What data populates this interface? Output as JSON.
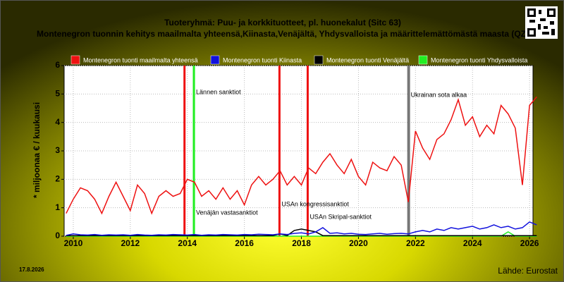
{
  "chart_data": {
    "type": "line",
    "title": "Tuoteryhmä: Puu- ja korkkituotteet, pl. huonekalut (Sitc 63)",
    "subtitle": "Montenegron tuonnin kehitys maailmalta yhteensä,Kiinasta,Venäjältä, Yhdysvalloista ja määrittelemättömästä maasta (QZ)",
    "y_label": "* miljoonaa € / kuukausi",
    "date": "17.8.2026",
    "source": "Lähde: Eurostat",
    "x": [
      2009.75,
      2010,
      2010.25,
      2010.5,
      2010.75,
      2011,
      2011.25,
      2011.5,
      2011.75,
      2012,
      2012.25,
      2012.5,
      2012.75,
      2013,
      2013.25,
      2013.5,
      2013.75,
      2014,
      2014.25,
      2014.5,
      2014.75,
      2015,
      2015.25,
      2015.5,
      2015.75,
      2016,
      2016.25,
      2016.5,
      2016.75,
      2017,
      2017.25,
      2017.5,
      2017.75,
      2018,
      2018.25,
      2018.5,
      2018.75,
      2019,
      2019.25,
      2019.5,
      2019.75,
      2020,
      2020.25,
      2020.5,
      2020.75,
      2021,
      2021.25,
      2021.5,
      2021.75,
      2022,
      2022.25,
      2022.5,
      2022.75,
      2023,
      2023.25,
      2023.5,
      2023.75,
      2024,
      2024.25,
      2024.5,
      2024.75,
      2025,
      2025.25,
      2025.5,
      2025.75,
      2026,
      2026.25
    ],
    "series": [
      {
        "name": "Montenegron tuonti maailmalta yhteensä",
        "color": "#ee1111",
        "values": [
          0.8,
          1.3,
          1.7,
          1.6,
          1.3,
          0.8,
          1.4,
          1.9,
          1.4,
          0.9,
          1.8,
          1.5,
          0.8,
          1.4,
          1.6,
          1.4,
          1.5,
          2.0,
          1.9,
          1.4,
          1.6,
          1.3,
          1.7,
          1.3,
          1.6,
          1.1,
          1.8,
          2.1,
          1.8,
          2.0,
          2.3,
          1.8,
          2.1,
          1.8,
          2.4,
          2.2,
          2.6,
          2.9,
          2.5,
          2.2,
          2.7,
          2.1,
          1.8,
          2.6,
          2.4,
          2.3,
          2.8,
          2.5,
          1.2,
          3.7,
          3.1,
          2.7,
          3.4,
          3.6,
          4.1,
          4.8,
          3.9,
          4.2,
          3.5,
          3.9,
          3.6,
          4.6,
          4.3,
          3.8,
          1.8,
          4.6,
          4.9
        ]
      },
      {
        "name": "Montenegron tuonti Kiinasta",
        "color": "#1111dd",
        "values": [
          0.03,
          0.08,
          0.05,
          0.04,
          0.06,
          0.03,
          0.05,
          0.04,
          0.05,
          0.03,
          0.06,
          0.04,
          0.03,
          0.05,
          0.04,
          0.06,
          0.05,
          0.04,
          0.06,
          0.03,
          0.05,
          0.04,
          0.06,
          0.05,
          0.04,
          0.06,
          0.05,
          0.07,
          0.06,
          0.05,
          0.08,
          0.06,
          0.1,
          0.12,
          0.08,
          0.15,
          0.3,
          0.1,
          0.12,
          0.08,
          0.1,
          0.07,
          0.06,
          0.08,
          0.1,
          0.07,
          0.09,
          0.1,
          0.08,
          0.15,
          0.2,
          0.15,
          0.25,
          0.2,
          0.3,
          0.25,
          0.3,
          0.35,
          0.25,
          0.3,
          0.4,
          0.3,
          0.35,
          0.25,
          0.3,
          0.5,
          0.4
        ]
      },
      {
        "name": "Montenegron tuonti Venäjältä",
        "color": "#000000",
        "values": [
          0.02,
          0.02,
          0.02,
          0.02,
          0.02,
          0.02,
          0.02,
          0.02,
          0.02,
          0.02,
          0.02,
          0.02,
          0.02,
          0.02,
          0.02,
          0.02,
          0.02,
          0.02,
          0.02,
          0.02,
          0.02,
          0.02,
          0.02,
          0.02,
          0.02,
          0.02,
          0.02,
          0.02,
          0.02,
          0.02,
          0.08,
          0.02,
          0.2,
          0.25,
          0.2,
          0.15,
          0.02,
          0.02,
          0.02,
          0.02,
          0.02,
          0.02,
          0.02,
          0.02,
          0.02,
          0.02,
          0.02,
          0.02,
          0.02,
          0.02,
          0.02,
          0.02,
          0.02,
          0.02,
          0.02,
          0.02,
          0.02,
          0.02,
          0.02,
          0.02,
          0.02,
          0.02,
          0.02,
          0.02,
          0.02,
          0.02,
          0.02
        ]
      },
      {
        "name": "Montenegron tuonti Yhdysvalloista",
        "color": "#22ee22",
        "values": [
          0,
          0,
          0,
          0,
          0,
          0,
          0,
          0,
          0,
          0,
          0,
          0,
          0,
          0,
          0,
          0,
          0,
          0,
          0,
          0,
          0,
          0,
          0,
          0,
          0,
          0,
          0,
          0,
          0,
          0,
          0,
          0,
          0,
          0,
          0,
          0,
          0,
          0,
          0,
          0,
          0,
          0,
          0,
          0,
          0,
          0,
          0,
          0,
          0,
          0,
          0,
          0,
          0,
          0,
          0,
          0,
          0,
          0,
          0,
          0,
          0,
          0,
          0.15,
          0,
          0,
          0,
          0
        ]
      }
    ],
    "annotations": [
      {
        "x": 2013.9,
        "label": "",
        "color": "#ee1111"
      },
      {
        "x": 2014.23,
        "label": "Lännen sanktiot",
        "color": "#22ee22"
      },
      {
        "x": 2014.23,
        "label": "Venäjän vastasanktiot",
        "color": "#22ee22"
      },
      {
        "x": 2017.23,
        "label": "USAn kongressisanktiot",
        "color": "#ee1111"
      },
      {
        "x": 2018.22,
        "label": "USAn Skripal-sanktiot",
        "color": "#ee1111"
      },
      {
        "x": 2021.76,
        "label": "Ukrainan sota alkaa",
        "color": "#777777"
      }
    ],
    "xlim": [
      2009.68,
      2026.12
    ],
    "xticks": [
      2010,
      2012,
      2014,
      2016,
      2018,
      2020,
      2022,
      2024,
      2026
    ],
    "ylim": [
      0,
      6
    ],
    "yticks": [
      0,
      1,
      2,
      3,
      4,
      5,
      6
    ],
    "grid": true
  }
}
